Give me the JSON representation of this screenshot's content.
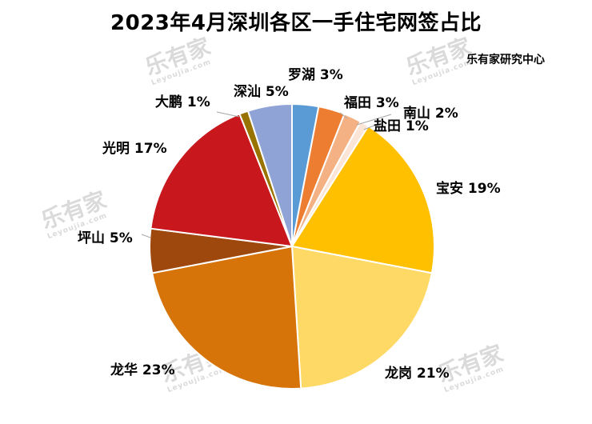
{
  "title": "2023年4月深圳各区一手住宅网签占比",
  "source": "乐有家研究中心",
  "watermark": {
    "brand": "乐有家",
    "sub": "Leyoujia.com"
  },
  "chart_data": {
    "type": "pie",
    "title": "2023年4月深圳各区一手住宅网签占比",
    "slices": [
      {
        "name": "罗湖",
        "label": "罗湖 3%",
        "value": 3,
        "color": "#5b9bd5"
      },
      {
        "name": "福田",
        "label": "福田 3%",
        "value": 3,
        "color": "#ed7d31"
      },
      {
        "name": "南山",
        "label": "南山 2%",
        "value": 2,
        "color": "#f4b183"
      },
      {
        "name": "盐田",
        "label": "盐田 1%",
        "value": 1,
        "color": "#fbe5d6"
      },
      {
        "name": "宝安",
        "label": "宝安 19%",
        "value": 19,
        "color": "#ffc000"
      },
      {
        "name": "龙岗",
        "label": "龙岗 21%",
        "value": 21,
        "color": "#ffd966"
      },
      {
        "name": "龙华",
        "label": "龙华 23%",
        "value": 23,
        "color": "#d67309"
      },
      {
        "name": "坪山",
        "label": "坪山 5%",
        "value": 5,
        "color": "#9e480e"
      },
      {
        "name": "光明",
        "label": "光明 17%",
        "value": 17,
        "color": "#c9171e"
      },
      {
        "name": "大鹏",
        "label": "大鹏 1%",
        "value": 1,
        "color": "#997300"
      },
      {
        "name": "深汕",
        "label": "深汕 5%",
        "value": 5,
        "color": "#8fa3d6"
      }
    ]
  }
}
